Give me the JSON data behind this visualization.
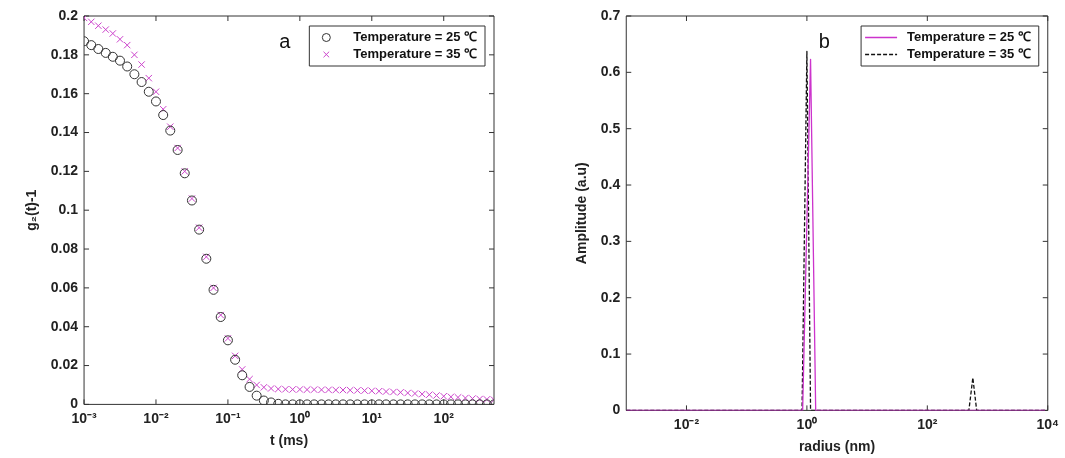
{
  "chart_data": [
    {
      "type": "scatter",
      "xlabel": "t (ms)",
      "ylabel": "g₂(t)-1",
      "annotations": [
        "a"
      ],
      "log": "x",
      "legend": "top right",
      "xlim": [
        0.001,
        500
      ],
      "xticks": [
        {
          "value": 0.001,
          "label": "10⁻³"
        },
        {
          "value": 0.01,
          "label": "10⁻²"
        },
        {
          "value": 0.1,
          "label": "10⁻¹"
        },
        {
          "value": 1,
          "label": "10⁰"
        },
        {
          "value": 10,
          "label": "10¹"
        },
        {
          "value": 100,
          "label": "10²"
        }
      ],
      "ylim": [
        0,
        0.2
      ],
      "yticks": [
        0,
        0.02,
        0.04,
        0.06,
        0.08,
        0.1,
        0.12,
        0.14,
        0.16,
        0.18,
        0.2
      ],
      "x": [
        0.001,
        0.00126,
        0.00158,
        0.002,
        0.00251,
        0.00316,
        0.00398,
        0.00501,
        0.00631,
        0.00794,
        0.01,
        0.0126,
        0.0158,
        0.02,
        0.0251,
        0.0316,
        0.0398,
        0.0501,
        0.0631,
        0.0794,
        0.1,
        0.126,
        0.158,
        0.2,
        0.251,
        0.316,
        0.398,
        0.501,
        0.631,
        0.794,
        1,
        1.26,
        1.58,
        2,
        2.51,
        3.16,
        3.98,
        5.01,
        6.31,
        7.94,
        10,
        12.6,
        15.8,
        20,
        25.1,
        31.6,
        39.8,
        50.1,
        63.1,
        79.4,
        100,
        126,
        158,
        200,
        251,
        316,
        398,
        500
      ],
      "series": [
        {
          "name": "Temperature = 25 ℃",
          "color": "#333333",
          "marker": "circle",
          "values": [
            0.187,
            0.185,
            0.183,
            0.181,
            0.179,
            0.177,
            0.174,
            0.17,
            0.166,
            0.161,
            0.156,
            0.149,
            0.141,
            0.131,
            0.119,
            0.105,
            0.09,
            0.075,
            0.059,
            0.045,
            0.033,
            0.023,
            0.015,
            0.009,
            0.0045,
            0.002,
            0.001,
            0.0003,
            0,
            0,
            0,
            0,
            0,
            0,
            0,
            0,
            0,
            0,
            0,
            0,
            0,
            0,
            0,
            0,
            0,
            0,
            0,
            0,
            0,
            0,
            0,
            0,
            0,
            0,
            0,
            0,
            0,
            0
          ]
        },
        {
          "name": "Temperature = 35 ℃",
          "color": "#cc44cc",
          "marker": "cross",
          "values": [
            0.199,
            0.197,
            0.195,
            0.193,
            0.191,
            0.188,
            0.185,
            0.18,
            0.175,
            0.168,
            0.161,
            0.152,
            0.143,
            0.132,
            0.12,
            0.106,
            0.091,
            0.076,
            0.06,
            0.046,
            0.034,
            0.025,
            0.018,
            0.013,
            0.01,
            0.0088,
            0.0082,
            0.0079,
            0.0078,
            0.0077,
            0.0077,
            0.0076,
            0.0076,
            0.0075,
            0.0075,
            0.0074,
            0.0074,
            0.0073,
            0.0072,
            0.0071,
            0.007,
            0.0068,
            0.0066,
            0.0064,
            0.0062,
            0.0059,
            0.0056,
            0.0053,
            0.005,
            0.0046,
            0.0042,
            0.0039,
            0.0036,
            0.0033,
            0.003,
            0.0028,
            0.0026,
            0.0024
          ]
        }
      ]
    },
    {
      "type": "line",
      "xlabel": "radius (nm)",
      "ylabel": "Amplitude (a.u)",
      "annotations": [
        "b"
      ],
      "log": "x",
      "legend": "top right",
      "xlim": [
        0.001,
        10000
      ],
      "xticks": [
        {
          "value": 0.01,
          "label": "10⁻²"
        },
        {
          "value": 1,
          "label": "10⁰"
        },
        {
          "value": 100,
          "label": "10²"
        },
        {
          "value": 10000,
          "label": "10⁴"
        }
      ],
      "ylim": [
        0,
        0.7
      ],
      "yticks": [
        0,
        0.1,
        0.2,
        0.3,
        0.4,
        0.5,
        0.6,
        0.7
      ],
      "series": [
        {
          "name": "Temperature = 25 ℃",
          "color": "#cc33cc",
          "line_style": "solid",
          "x": [
            0.001,
            0.85,
            1.15,
            1.4,
            9000
          ],
          "values": [
            0,
            0,
            0.623,
            0,
            0
          ]
        },
        {
          "name": "Temperature = 35 ℃",
          "color": "#111111",
          "line_style": "dashed",
          "x": [
            0.001,
            0.83,
            1.0,
            1.15,
            490,
            570,
            660,
            9000
          ],
          "values": [
            0,
            0,
            0.637,
            0,
            0,
            0.058,
            0,
            0
          ]
        }
      ]
    }
  ]
}
